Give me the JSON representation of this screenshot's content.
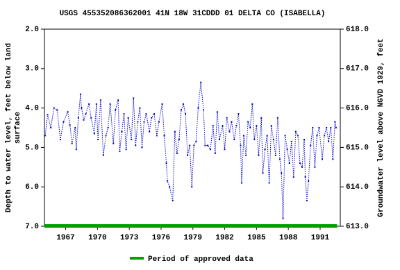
{
  "chart_data": {
    "type": "line",
    "title": "USGS 455352086362001 41N 18W 31CDDD 01 DELTA CO (ISABELLA)",
    "y_label": [
      "Depth to water level, feet below land",
      "surface"
    ],
    "y2_label": "Groundwater level above NGVD 1929, feet",
    "xlim": [
      1965.0,
      1992.9
    ],
    "xticks": [
      1967,
      1970,
      1973,
      1976,
      1979,
      1982,
      1985,
      1988,
      1991
    ],
    "ylim": [
      2.0,
      7.0
    ],
    "y_inverted": true,
    "yticks": [
      {
        "value": 2,
        "label": "2.0"
      },
      {
        "value": 3,
        "label": "3.0"
      },
      {
        "value": 4,
        "label": "4.0"
      },
      {
        "value": 5,
        "label": "5.0"
      },
      {
        "value": 6,
        "label": "6.0"
      },
      {
        "value": 7,
        "label": "7.0"
      }
    ],
    "y2lim": [
      613.0,
      618.0
    ],
    "y2ticks": [
      {
        "value": 613,
        "label": "613.0"
      },
      {
        "value": 614,
        "label": "614.0"
      },
      {
        "value": 615,
        "label": "615.0"
      },
      {
        "value": 616,
        "label": "616.0"
      },
      {
        "value": 617,
        "label": "617.0"
      },
      {
        "value": 618,
        "label": "618.0"
      }
    ],
    "series": [
      {
        "color": "#0000cc",
        "x": [
          1965.07,
          1965.3,
          1965.6,
          1965.9,
          1966.2,
          1966.5,
          1966.8,
          1967.2,
          1967.4,
          1967.6,
          1967.9,
          1968.0,
          1968.2,
          1968.4,
          1968.5,
          1968.7,
          1968.9,
          1969.2,
          1969.4,
          1969.7,
          1969.9,
          1970.05,
          1970.3,
          1970.55,
          1970.8,
          1971.0,
          1971.2,
          1971.5,
          1971.7,
          1971.95,
          1972.1,
          1972.3,
          1972.5,
          1972.7,
          1972.9,
          1973.2,
          1973.4,
          1973.6,
          1973.8,
          1974.0,
          1974.2,
          1974.4,
          1974.6,
          1974.9,
          1975.1,
          1975.35,
          1975.6,
          1975.8,
          1976.1,
          1976.3,
          1976.5,
          1976.6,
          1976.8,
          1977.1,
          1977.3,
          1977.5,
          1977.7,
          1977.9,
          1978.1,
          1978.3,
          1978.5,
          1978.7,
          1978.9,
          1979.1,
          1979.3,
          1979.5,
          1979.75,
          1980.0,
          1980.15,
          1980.4,
          1980.65,
          1980.9,
          1981.1,
          1981.3,
          1981.5,
          1981.8,
          1982.0,
          1982.2,
          1982.45,
          1982.65,
          1982.9,
          1983.1,
          1983.3,
          1983.5,
          1983.6,
          1983.8,
          1984.0,
          1984.2,
          1984.4,
          1984.6,
          1984.8,
          1985.0,
          1985.2,
          1985.45,
          1985.6,
          1985.8,
          1986.0,
          1986.2,
          1986.4,
          1986.6,
          1986.8,
          1987.0,
          1987.2,
          1987.35,
          1987.5,
          1987.7,
          1987.9,
          1988.1,
          1988.3,
          1988.5,
          1988.7,
          1988.9,
          1989.1,
          1989.3,
          1989.5,
          1989.6,
          1989.75,
          1989.9,
          1990.1,
          1990.3,
          1990.5,
          1990.7,
          1990.9,
          1991.2,
          1991.4,
          1991.6,
          1991.8,
          1992.0,
          1992.2,
          1992.4,
          1992.5
        ],
        "values": [
          4.7,
          4.17,
          4.5,
          4.0,
          4.05,
          4.8,
          4.35,
          4.1,
          4.43,
          4.9,
          4.5,
          5.05,
          4.25,
          3.65,
          4.0,
          4.3,
          4.15,
          3.9,
          4.25,
          4.65,
          3.9,
          4.8,
          3.8,
          5.2,
          4.7,
          4.5,
          3.9,
          4.9,
          4.05,
          3.8,
          5.1,
          4.6,
          4.15,
          5.05,
          4.25,
          4.8,
          3.75,
          4.95,
          4.35,
          4.0,
          5.0,
          4.35,
          4.15,
          4.6,
          4.25,
          4.15,
          4.7,
          4.35,
          3.9,
          4.7,
          5.4,
          5.85,
          6.0,
          6.35,
          4.6,
          5.15,
          4.8,
          4.05,
          3.9,
          4.15,
          5.2,
          4.95,
          6.0,
          4.95,
          4.85,
          4.0,
          3.35,
          4.05,
          4.95,
          4.95,
          5.05,
          4.45,
          5.15,
          4.1,
          4.8,
          4.45,
          5.05,
          4.25,
          4.6,
          4.35,
          4.8,
          4.45,
          4.15,
          4.95,
          5.9,
          4.7,
          5.2,
          4.35,
          4.5,
          3.9,
          4.8,
          4.45,
          5.2,
          4.25,
          5.65,
          5.05,
          4.7,
          5.9,
          4.45,
          4.8,
          5.2,
          4.25,
          5.3,
          5.65,
          6.8,
          4.7,
          5.05,
          5.4,
          4.85,
          5.75,
          4.6,
          4.7,
          5.4,
          5.5,
          4.8,
          5.75,
          6.35,
          5.85,
          4.95,
          4.5,
          5.5,
          4.7,
          4.5,
          5.3,
          4.7,
          4.5,
          4.85,
          4.5,
          5.3,
          4.35,
          4.5
        ]
      }
    ],
    "approved_period": {
      "name": "Period of approved data",
      "color": "#00a000",
      "start": 1965.0,
      "end": 1992.6
    }
  }
}
